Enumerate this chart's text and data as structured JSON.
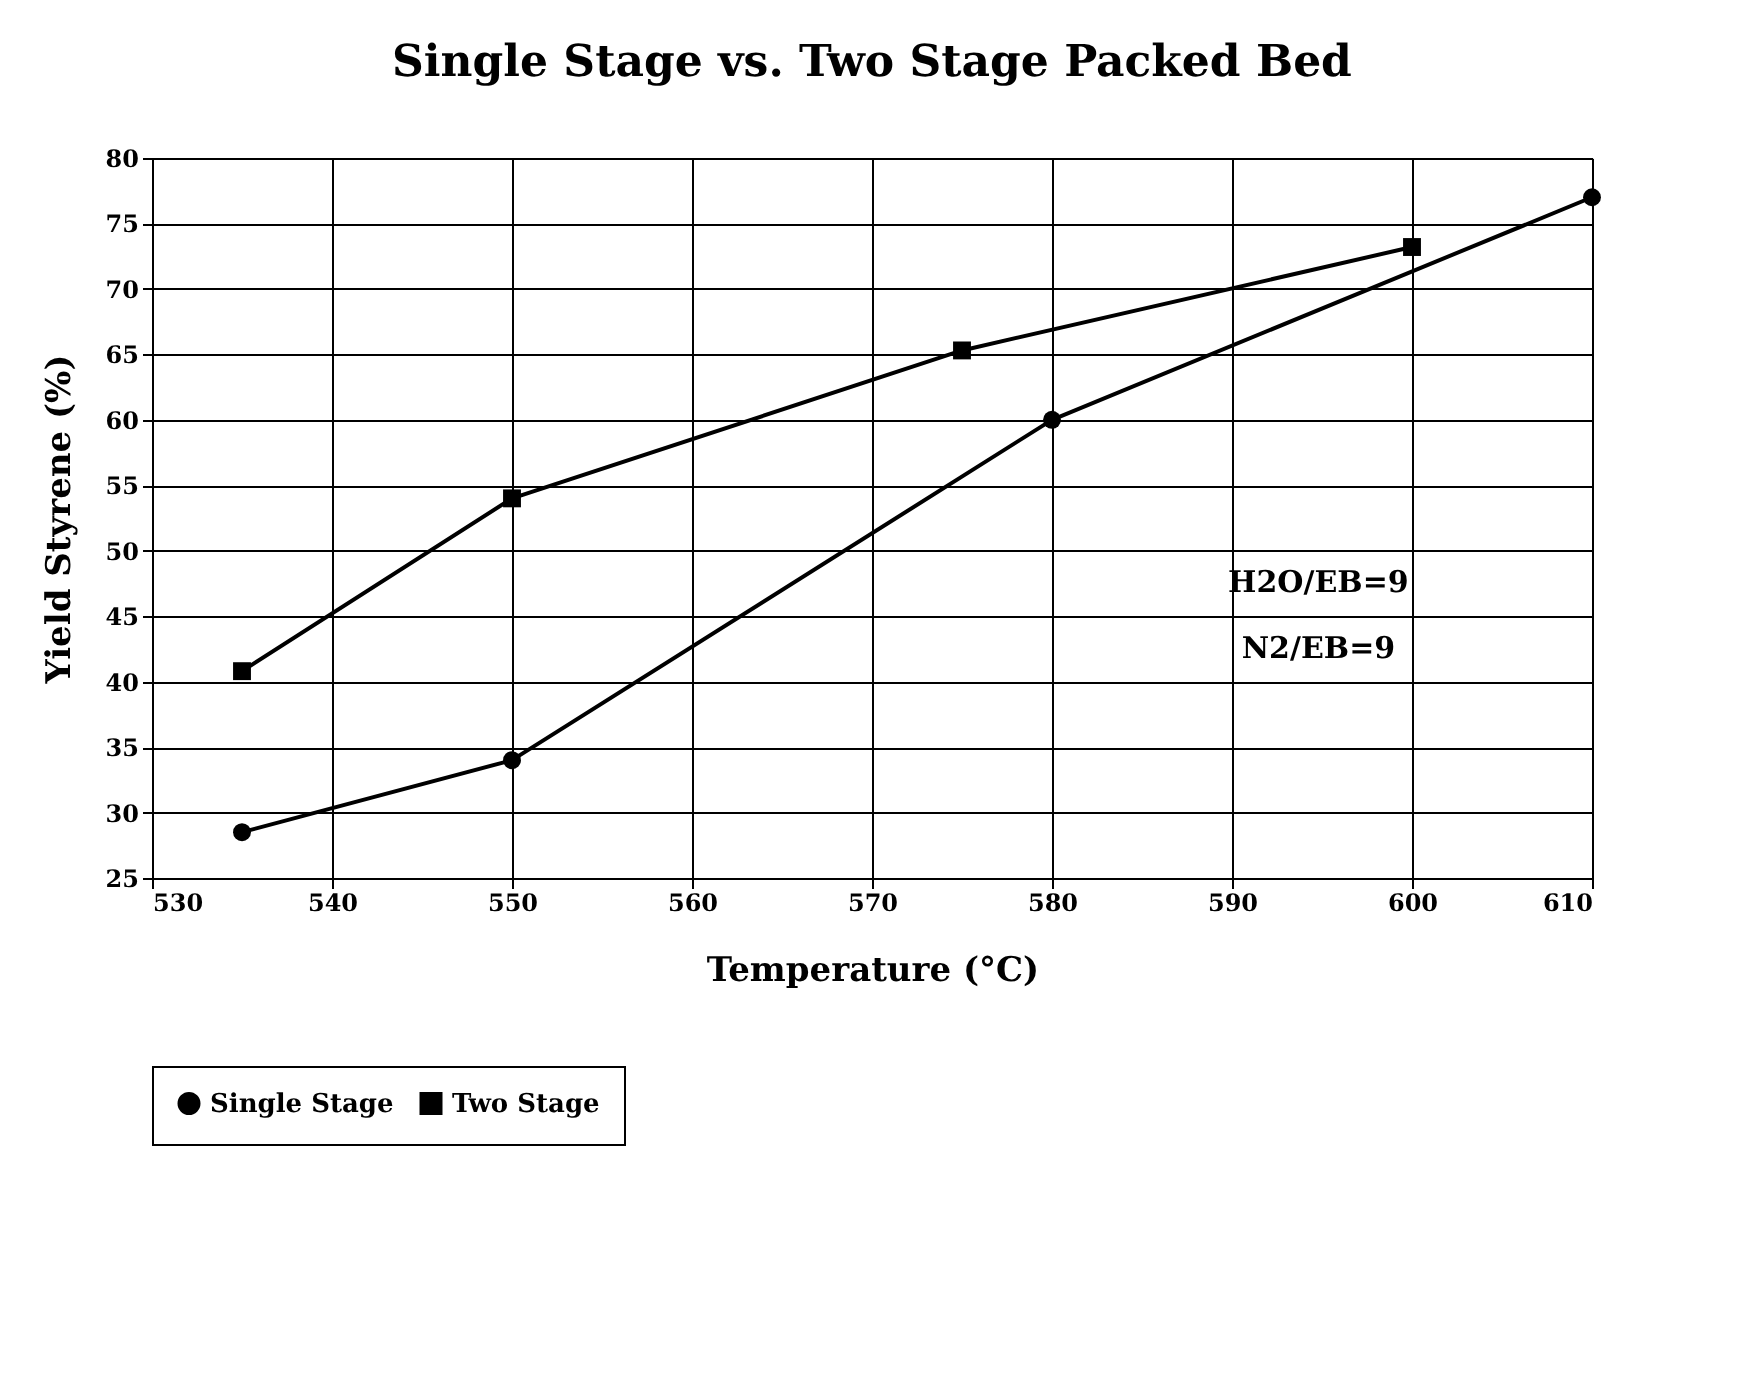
{
  "chart_data": {
    "type": "line",
    "title": "Single Stage vs. Two Stage Packed Bed",
    "xlabel": "Temperature (°C)",
    "ylabel": "Yield Styrene (%)",
    "annotations": [
      "H2O/EB=9",
      "N2/EB=9"
    ],
    "series": [
      {
        "name": "Single Stage",
        "color": "#000000",
        "marker": "circle",
        "x": [
          535,
          550,
          580,
          610
        ],
        "values": [
          28.5,
          34,
          60,
          77
        ]
      },
      {
        "name": "Two Stage",
        "color": "#000000",
        "marker": "square",
        "x": [
          535,
          550,
          575,
          600
        ],
        "values": [
          40.8,
          54,
          65.3,
          73.2
        ]
      }
    ],
    "xlim": [
      530,
      610
    ],
    "xticks": [
      530,
      540,
      550,
      560,
      570,
      580,
      590,
      600,
      610
    ],
    "ylim": [
      25,
      80
    ],
    "yticks": [
      25,
      30,
      35,
      40,
      45,
      50,
      55,
      60,
      65,
      70,
      75,
      80
    ],
    "grid": true,
    "legend": "bottom",
    "line_style": "solid"
  }
}
